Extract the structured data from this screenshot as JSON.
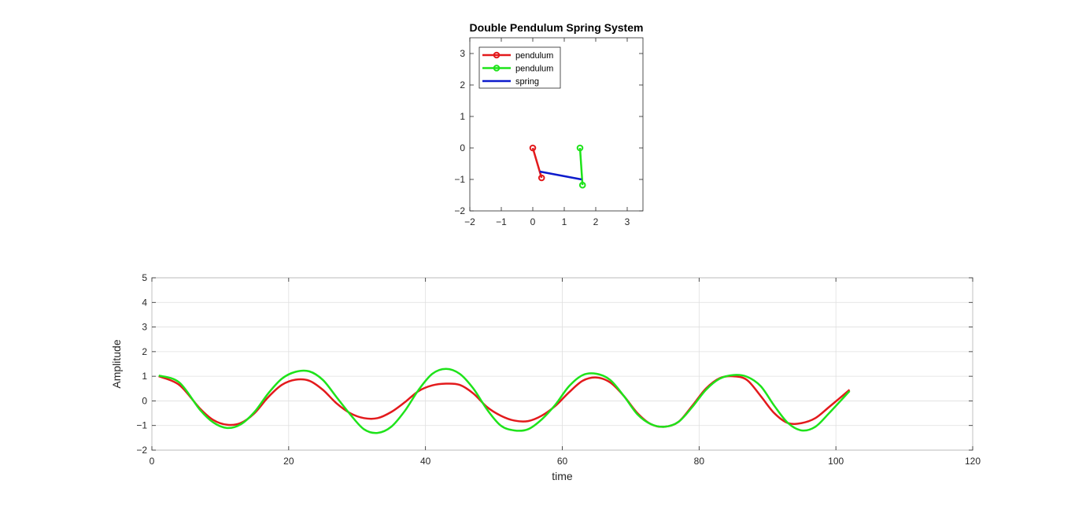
{
  "chart_data": [
    {
      "type": "line",
      "title": "Double Pendulum Spring System",
      "xlim": [
        -2,
        3.5
      ],
      "ylim": [
        -2,
        3.5
      ],
      "xticks": [
        -2,
        -1,
        0,
        1,
        2,
        3
      ],
      "yticks": [
        -2,
        -1,
        0,
        1,
        2,
        3
      ],
      "grid": false,
      "legend_position": "top-left",
      "series": [
        {
          "name": "pendulum",
          "color": "#e31a1c",
          "marker": "circle",
          "x": [
            0,
            0.28
          ],
          "y": [
            0,
            -0.95
          ]
        },
        {
          "name": "pendulum",
          "color": "#1ee31a",
          "marker": "circle",
          "x": [
            1.5,
            1.58
          ],
          "y": [
            0,
            -1.18
          ]
        },
        {
          "name": "spring",
          "color": "#0d1bcc",
          "marker": "none",
          "x": [
            0.22,
            1.55
          ],
          "y": [
            -0.75,
            -1.0
          ]
        }
      ]
    },
    {
      "type": "line",
      "title": "",
      "xlabel": "time",
      "ylabel": "Amplitude",
      "xlim": [
        0,
        120
      ],
      "ylim": [
        -2,
        5
      ],
      "xticks": [
        0,
        20,
        40,
        60,
        80,
        100,
        120
      ],
      "yticks": [
        -2,
        -1,
        0,
        1,
        2,
        3,
        4,
        5
      ],
      "grid": true,
      "series": [
        {
          "color": "#e31a1c",
          "x": [
            1,
            4,
            7,
            9,
            11,
            13,
            15,
            17,
            19,
            21,
            23,
            25,
            27,
            29,
            31,
            33,
            35,
            37,
            39,
            41,
            43,
            45,
            47,
            49,
            51,
            53,
            55,
            57,
            59,
            61,
            63,
            65,
            67,
            69,
            71,
            73,
            75,
            77,
            79,
            81,
            83,
            85,
            87,
            89,
            91,
            93,
            95,
            97,
            99,
            102
          ],
          "y": [
            1.0,
            0.65,
            -0.3,
            -0.78,
            -0.97,
            -0.9,
            -0.5,
            0.15,
            0.65,
            0.86,
            0.82,
            0.45,
            -0.1,
            -0.5,
            -0.7,
            -0.7,
            -0.45,
            -0.05,
            0.4,
            0.63,
            0.7,
            0.65,
            0.3,
            -0.25,
            -0.6,
            -0.8,
            -0.82,
            -0.6,
            -0.2,
            0.35,
            0.82,
            0.95,
            0.75,
            0.2,
            -0.5,
            -0.95,
            -1.05,
            -0.85,
            -0.2,
            0.5,
            0.92,
            1.0,
            0.85,
            0.2,
            -0.5,
            -0.9,
            -0.9,
            -0.7,
            -0.25,
            0.45
          ]
        },
        {
          "color": "#1ee31a",
          "x": [
            1,
            4,
            7,
            9,
            11,
            13,
            15,
            17,
            19,
            21,
            23,
            25,
            27,
            29,
            31,
            33,
            35,
            37,
            39,
            41,
            43,
            45,
            47,
            49,
            51,
            53,
            55,
            57,
            59,
            61,
            63,
            65,
            67,
            69,
            71,
            73,
            75,
            77,
            79,
            81,
            83,
            85,
            87,
            89,
            91,
            93,
            95,
            97,
            99,
            102
          ],
          "y": [
            1.03,
            0.75,
            -0.35,
            -0.88,
            -1.1,
            -0.95,
            -0.45,
            0.3,
            0.9,
            1.18,
            1.2,
            0.85,
            0.15,
            -0.55,
            -1.15,
            -1.3,
            -1.05,
            -0.4,
            0.45,
            1.1,
            1.3,
            1.1,
            0.5,
            -0.35,
            -1.0,
            -1.2,
            -1.15,
            -0.75,
            -0.15,
            0.6,
            1.05,
            1.1,
            0.85,
            0.2,
            -0.55,
            -0.95,
            -1.05,
            -0.85,
            -0.25,
            0.45,
            0.9,
            1.05,
            0.98,
            0.6,
            -0.2,
            -0.9,
            -1.2,
            -1.05,
            -0.5,
            0.4
          ]
        }
      ]
    }
  ]
}
